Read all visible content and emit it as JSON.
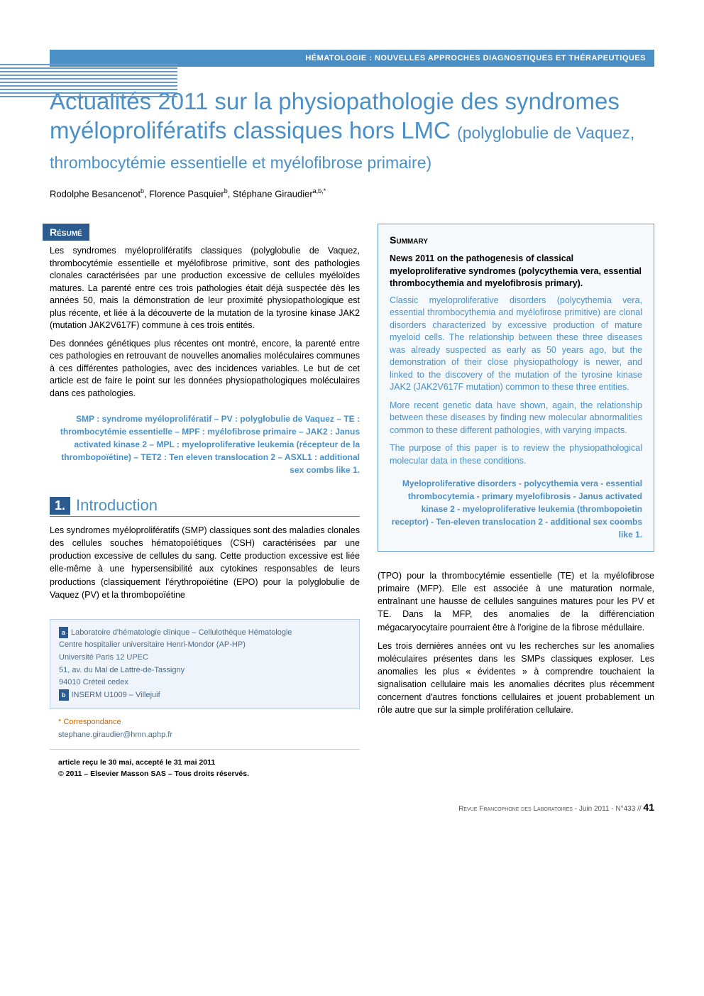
{
  "header_band": "HÉMATOLOGIE : NOUVELLES APPROCHES DIAGNOSTIQUES ET THÉRAPEUTIQUES",
  "title_main": "Actualités 2011 sur la physiopathologie des syndromes myéloprolifératifs classiques hors LMC",
  "title_sub": "(polyglobulie de Vaquez, thrombocytémie essentielle et myélofibrose primaire)",
  "authors_html": "Rodolphe Besancenot<sup>b</sup>, Florence Pasquier<sup>b</sup>, Stéphane Giraudier<sup>a,b,*</sup>",
  "resume": {
    "label": "Résumé",
    "p1": "Les syndromes myéloprolifératifs classiques (polyglobulie de Vaquez, thrombocytémie essentielle et myélofibrose primitive, sont des pathologies clonales caractérisées par une production excessive de cellules myéloïdes matures. La parenté entre ces trois pathologies était déjà suspectée dès les années 50, mais la démonstration de leur proximité physiopathologique est plus récente, et liée à la découverte de la mutation de la tyrosine kinase JAK2 (mutation JAK2V617F) commune à ces trois entités.",
    "p2": "Des données génétiques plus récentes ont montré, encore, la parenté entre ces pathologies en retrouvant de nouvelles anomalies moléculaires communes à ces différentes pathologies, avec des incidences variables. Le but de cet article est de faire le point sur les données physiopathologiques moléculaires dans ces pathologies."
  },
  "keywords_fr": "SMP : syndrome myéloprolifératif – PV : polyglobulie de Vaquez – TE : thrombocytémie essentielle – MPF : myélofibrose primaire – JAK2 : Janus activated kinase 2 – MPL : myeloproliferative leukemia (récepteur de la thrombopoïétine) – TET2 : Ten eleven translocation 2 – ASXL1 : additional sex combs like 1.",
  "section1": {
    "num": "1.",
    "title": "Introduction",
    "p1": "Les syndromes myéloprolifératifs (SMP) classiques sont des maladies clonales des cellules souches hématopoïétiques (CSH) caractérisées par une production excessive de cellules du sang. Cette production excessive est liée elle-même à une hypersensibilité aux cytokines responsables de leurs productions (classiquement l'érythropoïétine (EPO) pour la polyglobulie de Vaquez (PV) et la thrombopoïétine",
    "p2": "(TPO) pour la thrombocytémie essentielle (TE) et la myélofibrose primaire (MFP). Elle est associée à une maturation normale, entraînant une hausse de cellules sanguines matures pour les PV et TE. Dans la MFP, des anomalies de la différenciation mégacaryocytaire pourraient être à l'origine de la fibrose médullaire.",
    "p3": "Les trois dernières années ont vu les recherches sur les anomalies moléculaires présentes dans les SMPs classiques exploser. Les anomalies les plus « évidentes » à comprendre touchaient la signalisation cellulaire mais les anomalies décrites plus récemment concernent d'autres fonctions cellulaires et jouent probablement un rôle autre que sur la simple prolifération cellulaire."
  },
  "affiliations": {
    "a": "Laboratoire d'hématologie clinique – Cellulothèque Hématologie",
    "a_lines": "Centre hospitalier universitaire Henri-Mondor (AP-HP)\nUniversité Paris 12 UPEC\n51, av. du Mal de Lattre-de-Tassigny\n94010 Créteil cedex",
    "b": "INSERM U1009 – Villejuif",
    "corr_label": "* Correspondance",
    "corr_email": "stephane.giraudier@hmn.aphp.fr"
  },
  "received": "article reçu le 30 mai, accepté le 31 mai 2011",
  "copyright": "© 2011 – Elsevier Masson SAS – Tous droits réservés.",
  "summary": {
    "label": "Summary",
    "title": "News 2011 on the pathogenesis of classical myeloproliferative syndromes (polycythemia vera, essential thrombocythemia and myelofibrosis primary).",
    "p1": "Classic myeloproliferative disorders (polycythemia vera, essential thrombocythemia and myélofirose primitive) are clonal disorders characterized by excessive production of mature myeloid cells. The relationship between these three diseases was already suspected as early as 50 years ago, but the demonstration of their close physiopathology is newer, and linked to the discovery of the mutation of the tyrosine kinase JAK2 (JAK2V617F mutation) common to these three entities.",
    "p2": "More recent genetic data have shown, again, the relationship between these diseases by finding new molecular abnormalities common to these different pathologies, with varying impacts.",
    "p3": "The purpose of this paper is to review the physiopathological molecular data in these conditions."
  },
  "keywords_en": "Myeloproliferative disorders - polycythemia vera - essential thrombocytemia - primary myelofibrosis - Janus activated kinase 2 - myeloproliferative leukemia (thrombopoietin receptor) - Ten-eleven translocation 2 - additional sex coombs like 1.",
  "footer": {
    "journal": "Revue Francophone des Laboratoires",
    "date": "Juin 2011",
    "issue": "N°433",
    "page": "41"
  },
  "colors": {
    "brand_blue": "#4a90c7",
    "dark_blue": "#2c5b8f",
    "box_bg": "#f5f9fc",
    "box_border": "#6699cc",
    "affil_bg": "#eef4f9",
    "affil_border": "#b8cde0"
  }
}
